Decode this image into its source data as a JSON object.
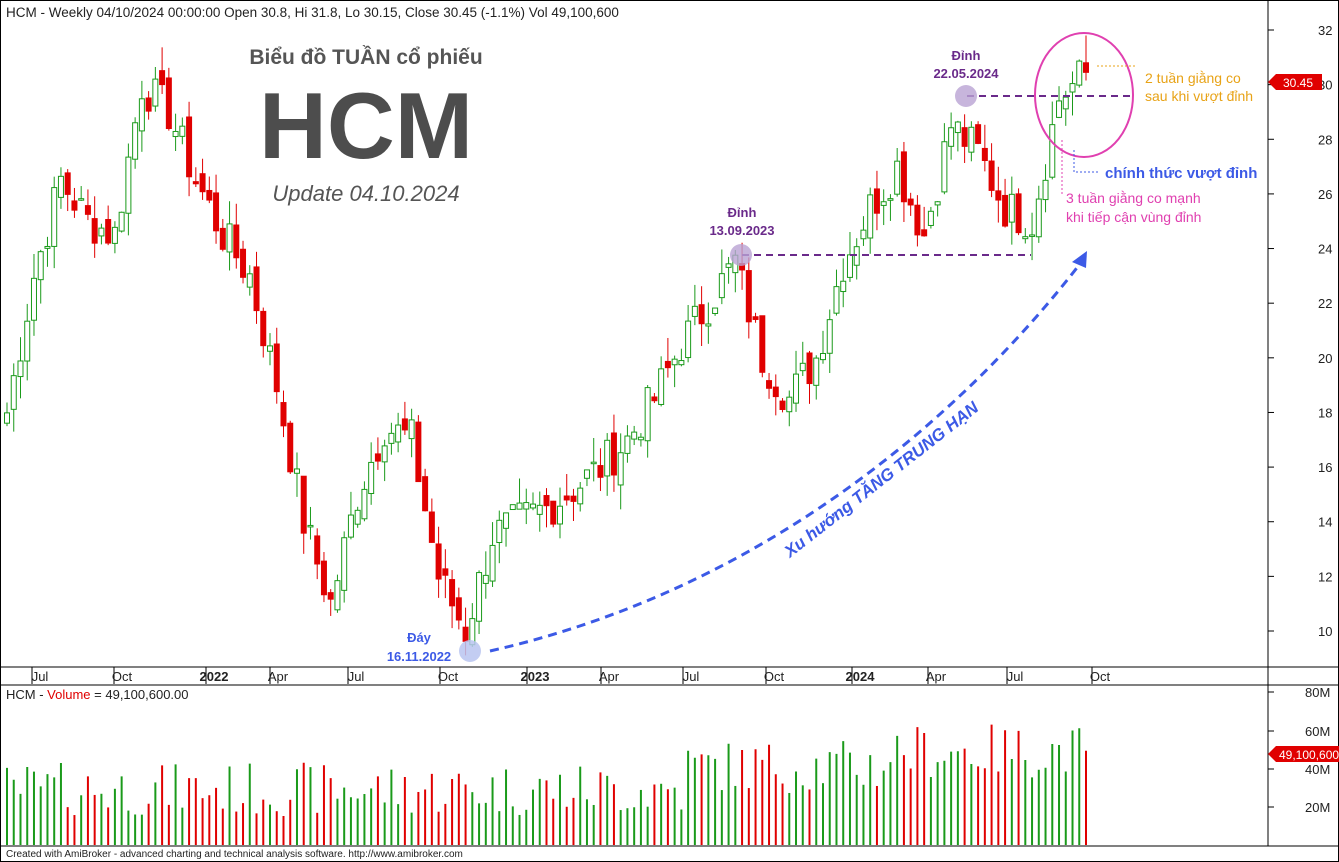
{
  "header": {
    "info": "HCM - Weekly 04/10/2024 00:00:00 Open 30.8, Hi 31.8, Lo 30.15, Close 30.45 (-1.1%) Vol 49,100,600"
  },
  "title": {
    "subtitle": "Biểu đồ TUẦN cổ phiếu",
    "ticker": "HCM",
    "update": "Update 04.10.2024"
  },
  "annotations": {
    "peak1_title": "Đỉnh",
    "peak1_date": "13.09.2023",
    "peak2_title": "Đỉnh",
    "peak2_date": "22.05.2024",
    "bottom_title": "Đáy",
    "bottom_date": "16.11.2022",
    "trend": "Xu hướng TĂNG TRUNG HẠN",
    "consol2_line1": "2 tuần giằng co",
    "consol2_line2": "sau khi vượt đỉnh",
    "breakout": "chính thức vượt đỉnh",
    "consol3_line1": "3 tuần giằng co mạnh",
    "consol3_line2": "khi tiếp cận vùng đỉnh"
  },
  "volume_panel": {
    "label_prefix": "HCM - ",
    "label_name": "Volume",
    "label_value": " = 49,100,600.00",
    "current_tag": "49,100,600"
  },
  "price_tag": "30.45",
  "footer": "Created with AmiBroker - advanced charting and technical analysis software. http://www.amibroker.com",
  "colors": {
    "up": "#1a9a1a",
    "down": "#e00000",
    "trend_arrow": "#3c5ae6",
    "peak_label": "#6a2a8a",
    "bottom_label": "#3c5ae6",
    "orange": "#e8a317",
    "magenta": "#e040b0"
  },
  "chart_data": {
    "type": "candlestick",
    "timeframe": "weekly",
    "x_ticks": [
      "Jul",
      "Oct",
      "2022",
      "Apr",
      "Jul",
      "Oct",
      "2023",
      "Apr",
      "Jul",
      "Oct",
      "2024",
      "Apr",
      "Jul",
      "Oct"
    ],
    "price_axis": {
      "ticks": [
        10,
        12,
        14,
        16,
        18,
        20,
        22,
        24,
        26,
        28,
        30,
        32
      ],
      "ylim": [
        8.6,
        32.9
      ]
    },
    "volume_axis": {
      "ticks": [
        "20M",
        "40M",
        "60M",
        "80M"
      ],
      "ylim": [
        0,
        85
      ]
    },
    "last_bar": {
      "date": "04/10/2024",
      "open": 30.8,
      "high": 31.8,
      "low": 30.15,
      "close": 30.45,
      "volume": 49100600
    },
    "key_levels": [
      {
        "label": "Đỉnh 13.09.2023",
        "price": 23.9
      },
      {
        "label": "Đỉnh 22.05.2024",
        "price": 29.9
      },
      {
        "label": "Đáy 16.11.2022",
        "price": 9.2
      }
    ],
    "close_path": [
      {
        "date": "2021-06",
        "close": 18
      },
      {
        "date": "2021-07",
        "close": 23
      },
      {
        "date": "2021-08",
        "close": 26.5
      },
      {
        "date": "2021-09",
        "close": 25
      },
      {
        "date": "2021-10",
        "close": 24.5
      },
      {
        "date": "2021-11",
        "close": 30
      },
      {
        "date": "2021-12",
        "close": 29
      },
      {
        "date": "2022-01",
        "close": 26.5
      },
      {
        "date": "2022-02",
        "close": 24.5
      },
      {
        "date": "2022-03",
        "close": 23
      },
      {
        "date": "2022-04",
        "close": 19
      },
      {
        "date": "2022-05",
        "close": 14
      },
      {
        "date": "2022-06",
        "close": 11
      },
      {
        "date": "2022-07",
        "close": 15
      },
      {
        "date": "2022-08",
        "close": 17.5
      },
      {
        "date": "2022-09",
        "close": 17
      },
      {
        "date": "2022-10",
        "close": 12
      },
      {
        "date": "2022-11",
        "close": 10
      },
      {
        "date": "2022-12",
        "close": 13.5
      },
      {
        "date": "2023-01",
        "close": 14
      },
      {
        "date": "2023-02",
        "close": 14.5
      },
      {
        "date": "2023-03",
        "close": 15.2
      },
      {
        "date": "2023-04",
        "close": 16
      },
      {
        "date": "2023-05",
        "close": 17
      },
      {
        "date": "2023-06",
        "close": 18.5
      },
      {
        "date": "2023-07",
        "close": 20.5
      },
      {
        "date": "2023-08",
        "close": 22
      },
      {
        "date": "2023-09",
        "close": 23.5
      },
      {
        "date": "2023-10",
        "close": 20
      },
      {
        "date": "2023-11",
        "close": 18.5
      },
      {
        "date": "2023-12",
        "close": 20
      },
      {
        "date": "2024-01",
        "close": 23.5
      },
      {
        "date": "2024-02",
        "close": 25.5
      },
      {
        "date": "2024-03",
        "close": 27
      },
      {
        "date": "2024-04",
        "close": 24.5
      },
      {
        "date": "2024-05",
        "close": 28.5
      },
      {
        "date": "2024-06",
        "close": 27.5
      },
      {
        "date": "2024-07",
        "close": 25.5
      },
      {
        "date": "2024-08",
        "close": 25
      },
      {
        "date": "2024-09",
        "close": 29.5
      },
      {
        "date": "2024-10",
        "close": 30.45
      }
    ]
  }
}
